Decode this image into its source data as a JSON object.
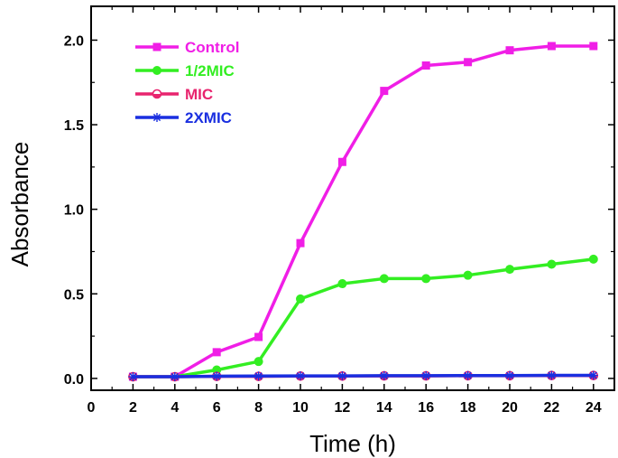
{
  "chart_data": {
    "type": "line",
    "title": "",
    "xlabel": "Time (h)",
    "ylabel": "Absorbance",
    "xlim": [
      0,
      25
    ],
    "ylim": [
      -0.07,
      2.2
    ],
    "x_ticks": [
      0,
      2,
      4,
      6,
      8,
      10,
      12,
      14,
      16,
      18,
      20,
      22,
      24
    ],
    "x_tick_labels": [
      "0",
      "2",
      "4",
      "6",
      "8",
      "10",
      "12",
      "14",
      "16",
      "18",
      "20",
      "22",
      "24"
    ],
    "y_ticks": [
      0.0,
      0.5,
      1.0,
      1.5,
      2.0
    ],
    "y_tick_labels": [
      "0.0",
      "0.5",
      "1.0",
      "1.5",
      "2.0"
    ],
    "grid": false,
    "legend_position": "top-left",
    "x": [
      2,
      4,
      6,
      8,
      10,
      12,
      14,
      16,
      18,
      20,
      22,
      24
    ],
    "series": [
      {
        "name": "Control",
        "color": "#f01ee6",
        "marker": "square",
        "values": [
          0.01,
          0.01,
          0.155,
          0.245,
          0.8,
          1.28,
          1.7,
          1.85,
          1.87,
          1.94,
          1.965,
          1.965
        ]
      },
      {
        "name": "1/2MIC",
        "color": "#33ee22",
        "marker": "circle",
        "values": [
          0.01,
          0.01,
          0.05,
          0.1,
          0.47,
          0.56,
          0.59,
          0.59,
          0.61,
          0.645,
          0.675,
          0.705
        ]
      },
      {
        "name": "MIC",
        "color": "#e8246e",
        "marker": "half-circle",
        "values": [
          0.01,
          0.01,
          0.012,
          0.012,
          0.014,
          0.014,
          0.015,
          0.015,
          0.016,
          0.016,
          0.017,
          0.017
        ]
      },
      {
        "name": "2XMIC",
        "color": "#1a2fe0",
        "marker": "star",
        "values": [
          0.01,
          0.01,
          0.013,
          0.014,
          0.015,
          0.015,
          0.016,
          0.016,
          0.017,
          0.017,
          0.018,
          0.018
        ]
      }
    ]
  }
}
